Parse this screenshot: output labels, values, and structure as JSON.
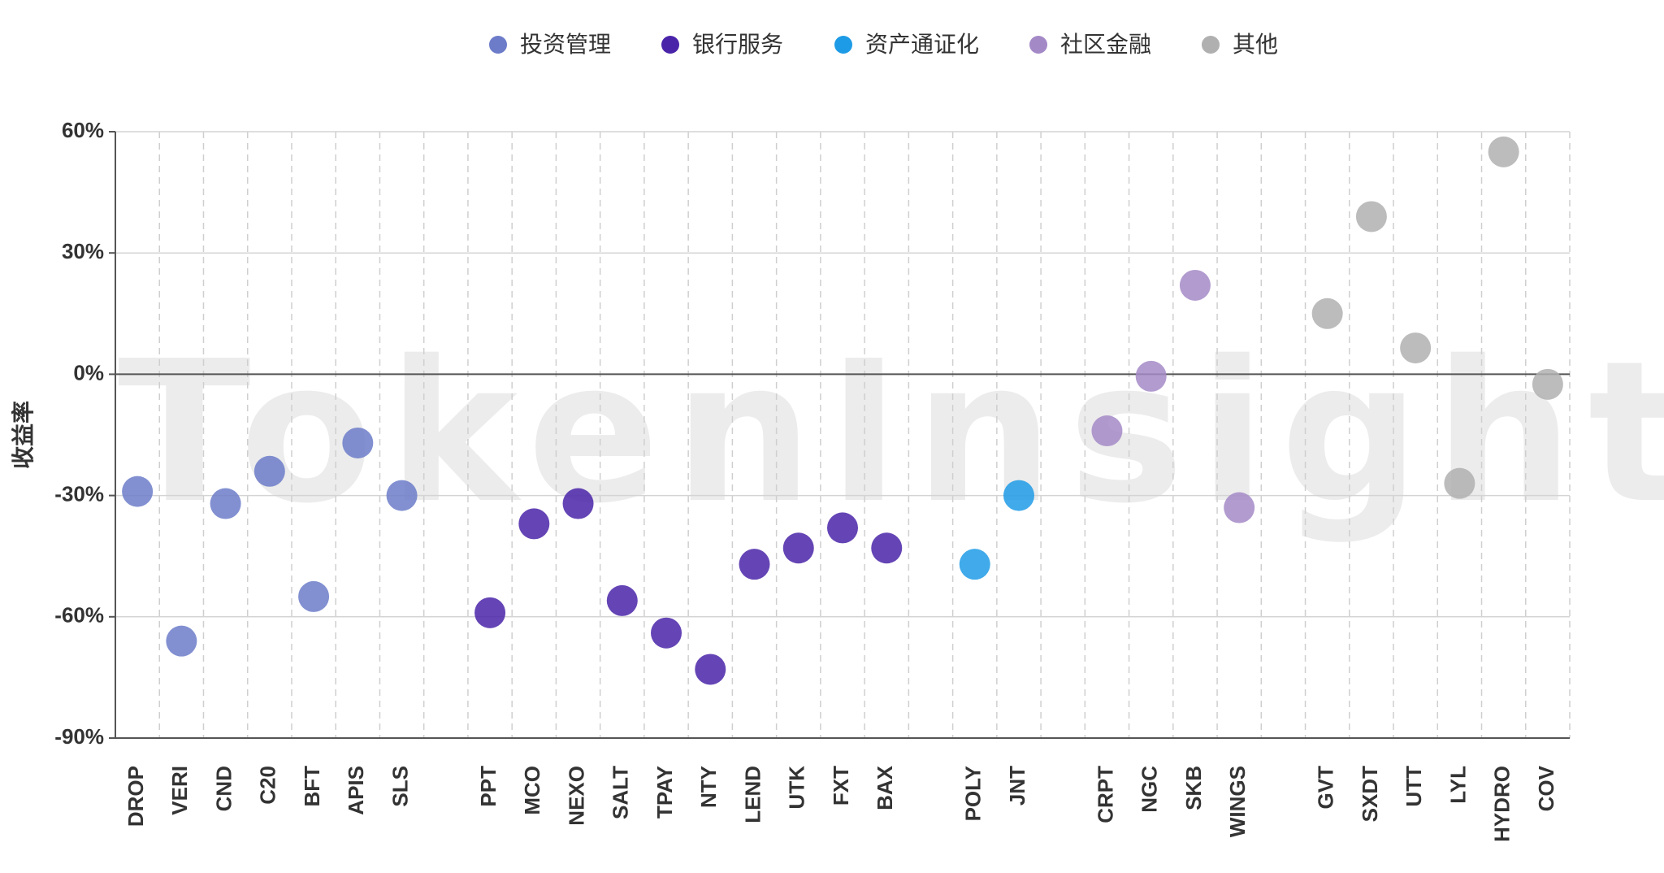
{
  "watermark": "TokenInsight",
  "chart_data": {
    "type": "scatter",
    "ylabel": "收益率",
    "ylim": [
      -90,
      60
    ],
    "yticks": [
      -90,
      -60,
      -30,
      0,
      30,
      60
    ],
    "ytick_labels": [
      "-90%",
      "-60%",
      "-30%",
      "0%",
      "30%",
      "60%"
    ],
    "legend_position": "top-center",
    "grid": true,
    "slots": [
      "DROP",
      "VERI",
      "CND",
      "C20",
      "BFT",
      "APIS",
      "SLS",
      "",
      "PPT",
      "MCO",
      "NEXO",
      "SALT",
      "TPAY",
      "NTY",
      "LEND",
      "UTK",
      "FXT",
      "BAX",
      "",
      "POLY",
      "JNT",
      "",
      "CRPT",
      "NGC",
      "SKB",
      "WINGS",
      "",
      "GVT",
      "SXDT",
      "UTT",
      "LYL",
      "HYDRO",
      "COV"
    ],
    "series": [
      {
        "name": "投资管理",
        "color": "#6c7cc9",
        "points": [
          {
            "x": "DROP",
            "y": -29
          },
          {
            "x": "VERI",
            "y": -66
          },
          {
            "x": "CND",
            "y": -32
          },
          {
            "x": "C20",
            "y": -24
          },
          {
            "x": "BFT",
            "y": -55
          },
          {
            "x": "APIS",
            "y": -17
          },
          {
            "x": "SLS",
            "y": -30
          }
        ]
      },
      {
        "name": "银行服务",
        "color": "#4a24a8",
        "points": [
          {
            "x": "PPT",
            "y": -59
          },
          {
            "x": "MCO",
            "y": -37
          },
          {
            "x": "NEXO",
            "y": -32
          },
          {
            "x": "SALT",
            "y": -56
          },
          {
            "x": "TPAY",
            "y": -64
          },
          {
            "x": "NTY",
            "y": -73
          },
          {
            "x": "LEND",
            "y": -47
          },
          {
            "x": "UTK",
            "y": -43
          },
          {
            "x": "FXT",
            "y": -38
          },
          {
            "x": "BAX",
            "y": -43
          }
        ]
      },
      {
        "name": "资产通证化",
        "color": "#1e9be6",
        "points": [
          {
            "x": "POLY",
            "y": -47
          },
          {
            "x": "JNT",
            "y": -30
          }
        ]
      },
      {
        "name": "社区金融",
        "color": "#a489c7",
        "points": [
          {
            "x": "CRPT",
            "y": -14
          },
          {
            "x": "NGC",
            "y": -0.5
          },
          {
            "x": "SKB",
            "y": 22
          },
          {
            "x": "WINGS",
            "y": -33
          }
        ]
      },
      {
        "name": "其他",
        "color": "#b0b0b0",
        "points": [
          {
            "x": "GVT",
            "y": 15
          },
          {
            "x": "SXDT",
            "y": 39
          },
          {
            "x": "UTT",
            "y": 6.5
          },
          {
            "x": "LYL",
            "y": -27
          },
          {
            "x": "HYDRO",
            "y": 55
          },
          {
            "x": "COV",
            "y": -2.5
          }
        ]
      }
    ]
  }
}
